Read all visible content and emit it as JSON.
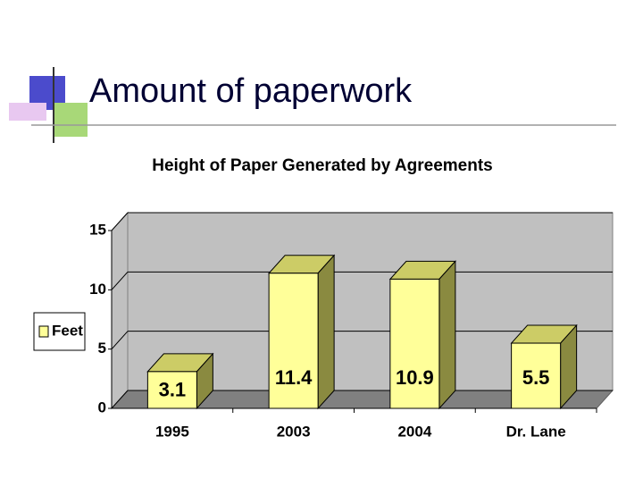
{
  "slide_title": "Amount of paperwork",
  "chart_data": {
    "type": "bar",
    "title": "Height of Paper Generated by Agreements",
    "categories": [
      "1995",
      "2003",
      "2004",
      "Dr. Lane"
    ],
    "series": [
      {
        "name": "Feet",
        "color": "#ffff99",
        "values": [
          3.1,
          11.4,
          10.9,
          5.5
        ]
      }
    ],
    "ylim": [
      0,
      15
    ],
    "yticks": [
      0,
      5,
      10,
      15
    ],
    "grid": true,
    "legend": "left"
  }
}
